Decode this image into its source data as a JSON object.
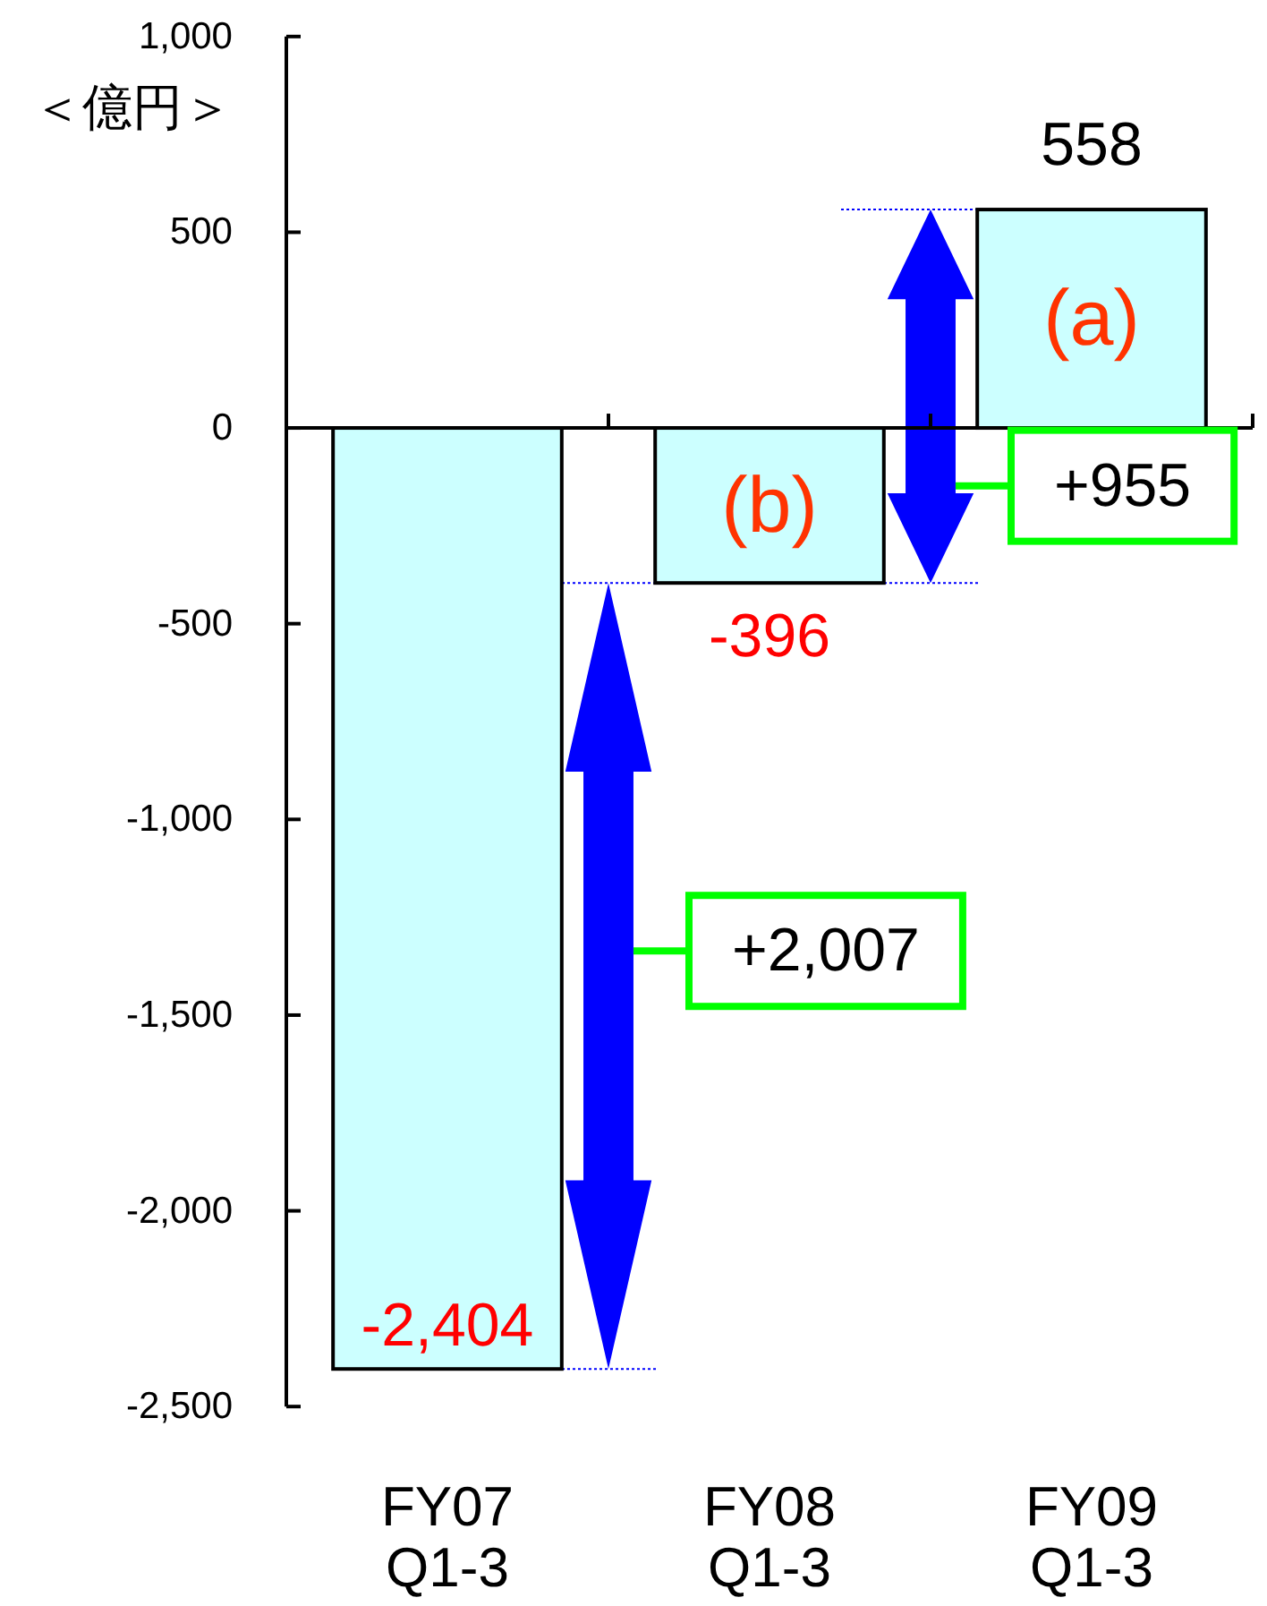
{
  "chart_data": {
    "type": "bar",
    "ylabel": "＜億円＞",
    "categories": [
      "FY07\nQ1-3",
      "FY08\nQ1-3",
      "FY09\nQ1-3"
    ],
    "values": [
      -2404,
      -396,
      558
    ],
    "color": "#ccffff",
    "value_labels": [
      "-2,404",
      "-396",
      "558"
    ],
    "ylim": [
      -2500,
      1000
    ],
    "yticks": [
      {
        "value": 1000,
        "label": "1,000"
      },
      500,
      0,
      -500,
      {
        "value": -1000,
        "label": "-1,000"
      },
      {
        "value": -1500,
        "label": "-1,500"
      },
      {
        "value": -2000,
        "label": "-2,000"
      },
      {
        "value": -2500,
        "label": "-2,500"
      }
    ],
    "annotations": [
      "(a)",
      "(b)",
      "+2,007",
      "+955"
    ]
  }
}
